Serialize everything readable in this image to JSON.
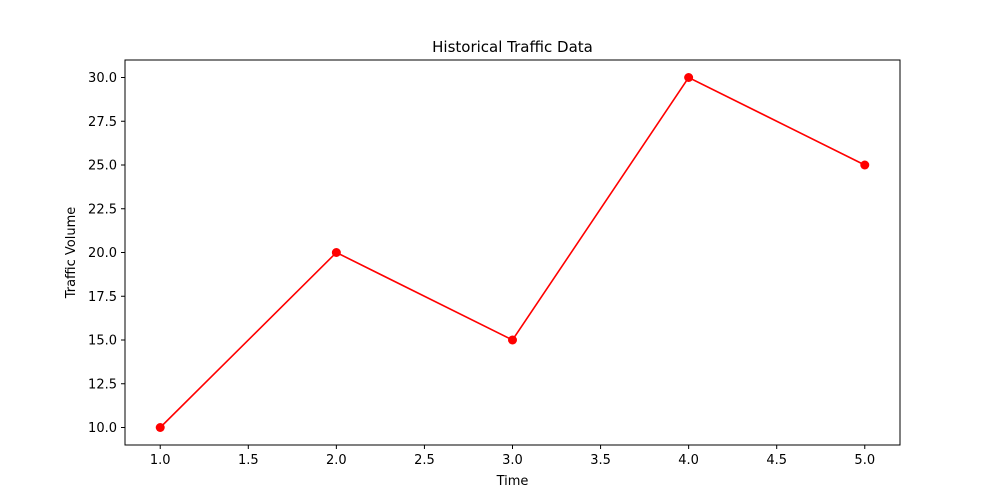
{
  "chart_data": {
    "type": "line",
    "title": "Historical Traffic Data",
    "xlabel": "Time",
    "ylabel": "Traffic Volume",
    "x": [
      1,
      2,
      3,
      4,
      5
    ],
    "series": [
      {
        "values": [
          10,
          20,
          15,
          30,
          25
        ],
        "color": "#ff0000",
        "marker": "circle"
      }
    ],
    "xlim": [
      0.8,
      5.2
    ],
    "ylim": [
      9.0,
      31.0
    ],
    "xticks": [
      1.0,
      1.5,
      2.0,
      2.5,
      3.0,
      3.5,
      4.0,
      4.5,
      5.0
    ],
    "yticks": [
      10.0,
      12.5,
      15.0,
      17.5,
      20.0,
      22.5,
      25.0,
      27.5,
      30.0
    ],
    "xtick_labels": [
      "1.0",
      "1.5",
      "2.0",
      "2.5",
      "3.0",
      "3.5",
      "4.0",
      "4.5",
      "5.0"
    ],
    "ytick_labels": [
      "10.0",
      "12.5",
      "15.0",
      "17.5",
      "20.0",
      "22.5",
      "25.0",
      "27.5",
      "30.0"
    ],
    "grid": false,
    "legend": "none"
  }
}
